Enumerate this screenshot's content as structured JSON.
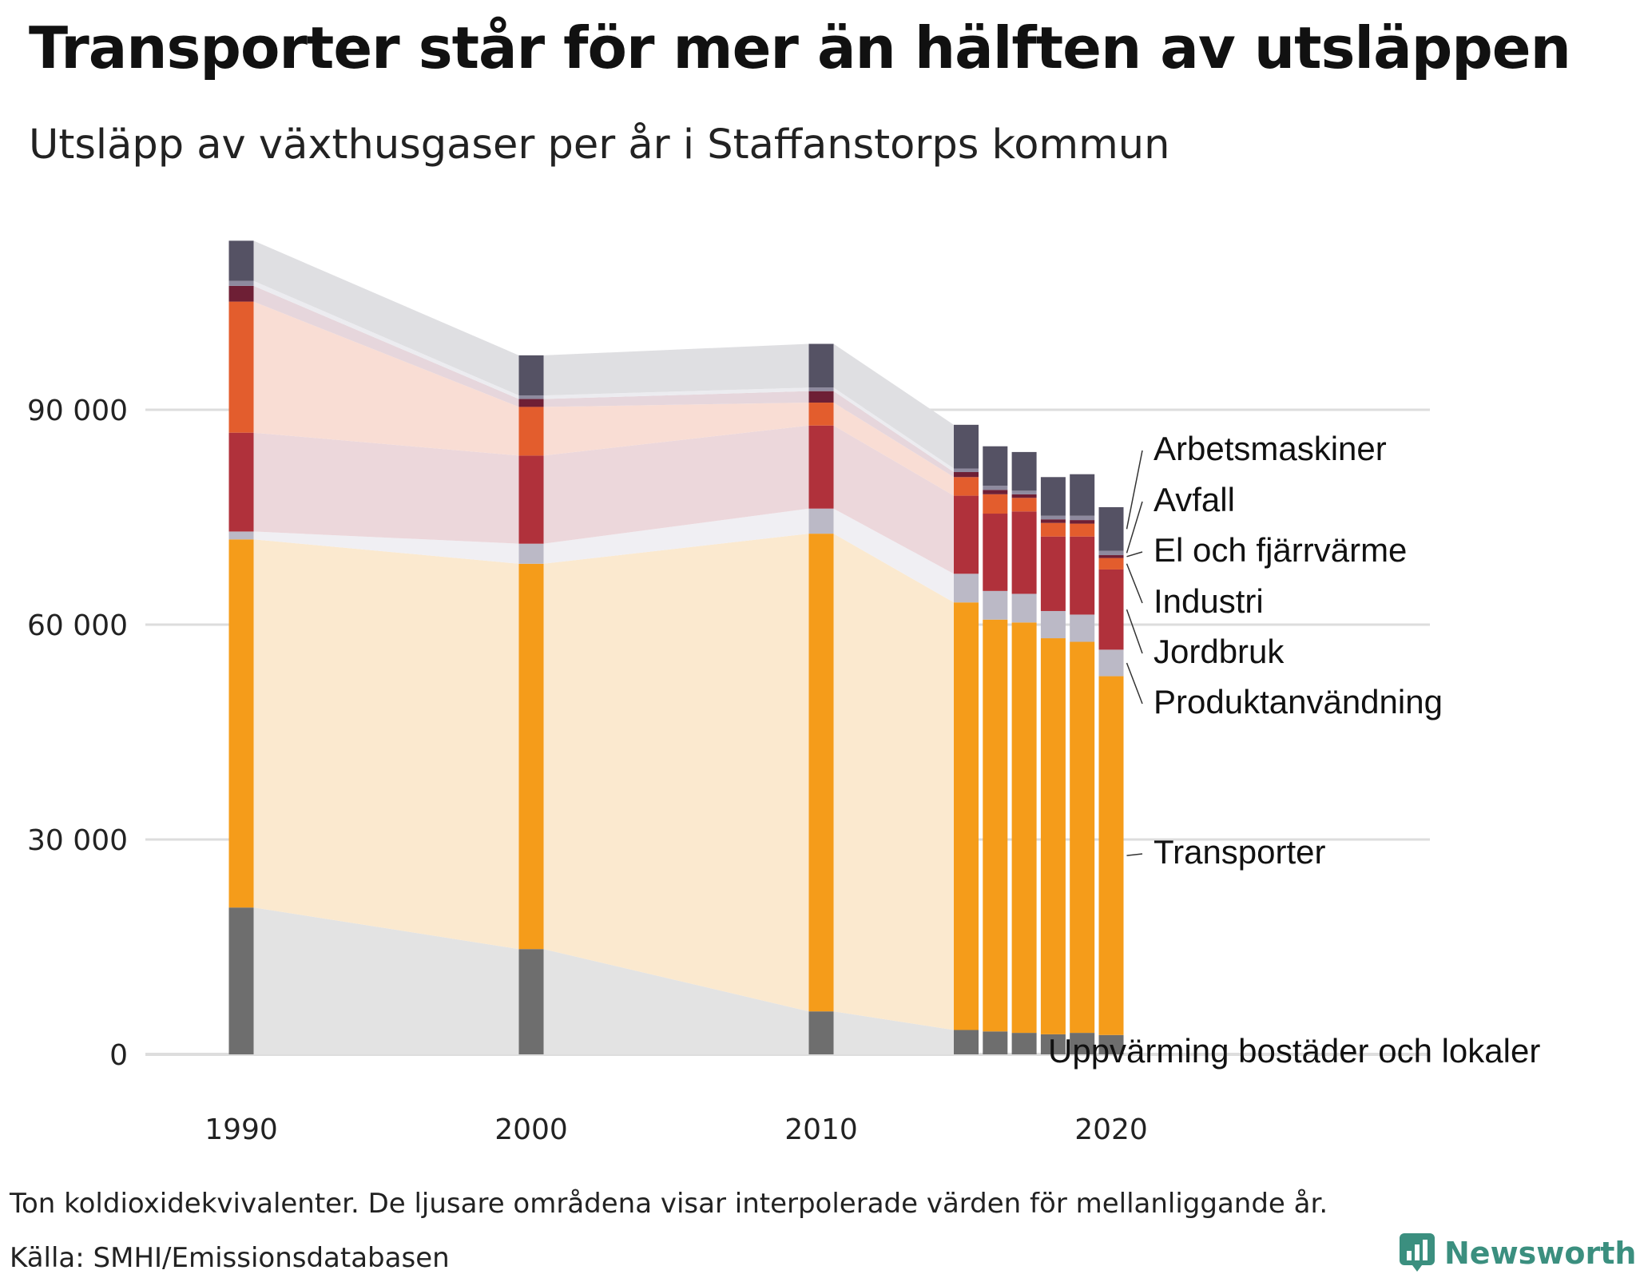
{
  "title": "Transporter står för mer än hälften av utsläppen",
  "subtitle": "Utsläpp av växthusgaser per år i Staffanstorps kommun",
  "footnote": "Ton koldioxidekvivalenter. De ljusare områdena visar interpolerade värden för mellanliggande år.",
  "source": "Källa: SMHI/Emissionsdatabasen",
  "brand": "Newsworthy",
  "chart_data": {
    "type": "bar",
    "stacked": true,
    "title": "Transporter står för mer än hälften av utsläppen",
    "subtitle": "Utsläpp av växthusgaser per år i Staffanstorps kommun",
    "xlabel": "",
    "ylabel": "Ton koldioxidekvivalenter",
    "ylim": [
      0,
      120000
    ],
    "yticks": [
      0,
      30000,
      60000,
      90000
    ],
    "ytick_labels": [
      "0",
      "30 000",
      "60 000",
      "90 000"
    ],
    "xticks": [
      1990,
      2000,
      2010,
      2020
    ],
    "xtick_labels": [
      "1990",
      "2000",
      "2010",
      "2020"
    ],
    "grid": true,
    "legend_placement": "right",
    "categories": [
      1990,
      2000,
      2010,
      2015,
      2016,
      2017,
      2018,
      2019,
      2020
    ],
    "series": [
      {
        "name": "Uppvärming bostäder och lokaler",
        "color": "#6e6e6e",
        "area_color": "#e3e3e3",
        "values": [
          20500,
          14700,
          6000,
          3400,
          3200,
          3000,
          2800,
          3000,
          2700
        ]
      },
      {
        "name": "Transporter",
        "color": "#f59c1a",
        "area_color": "#fbe9cf",
        "values": [
          51400,
          53800,
          66700,
          59700,
          57500,
          57300,
          55300,
          54600,
          50100
        ]
      },
      {
        "name": "Produktanvändning",
        "color": "#bbb9c6",
        "area_color": "#f0eff3",
        "values": [
          1100,
          2800,
          3500,
          4000,
          4000,
          4000,
          3800,
          3800,
          3700
        ]
      },
      {
        "name": "Jordbruk",
        "color": "#b0313b",
        "area_color": "#ecd7db",
        "values": [
          13800,
          12300,
          11600,
          10900,
          10800,
          11500,
          10400,
          10900,
          11200
        ]
      },
      {
        "name": "Industri",
        "color": "#e35d2d",
        "area_color": "#f9ddd4",
        "values": [
          18300,
          6800,
          3200,
          2600,
          2700,
          1900,
          1900,
          1800,
          1600
        ]
      },
      {
        "name": "El och fjärrvärme",
        "color": "#6e1f35",
        "area_color": "#e6d6dc",
        "values": [
          2200,
          1100,
          1600,
          700,
          600,
          500,
          500,
          500,
          400
        ]
      },
      {
        "name": "Avfall",
        "color": "#8e8a9e",
        "area_color": "#ececf0",
        "values": [
          700,
          500,
          500,
          500,
          600,
          500,
          500,
          600,
          600
        ]
      },
      {
        "name": "Arbetsmaskiner",
        "color": "#555264",
        "area_color": "#dfdfe2",
        "values": [
          5600,
          5600,
          6100,
          6100,
          5500,
          5400,
          5400,
          5800,
          6100
        ]
      }
    ]
  }
}
